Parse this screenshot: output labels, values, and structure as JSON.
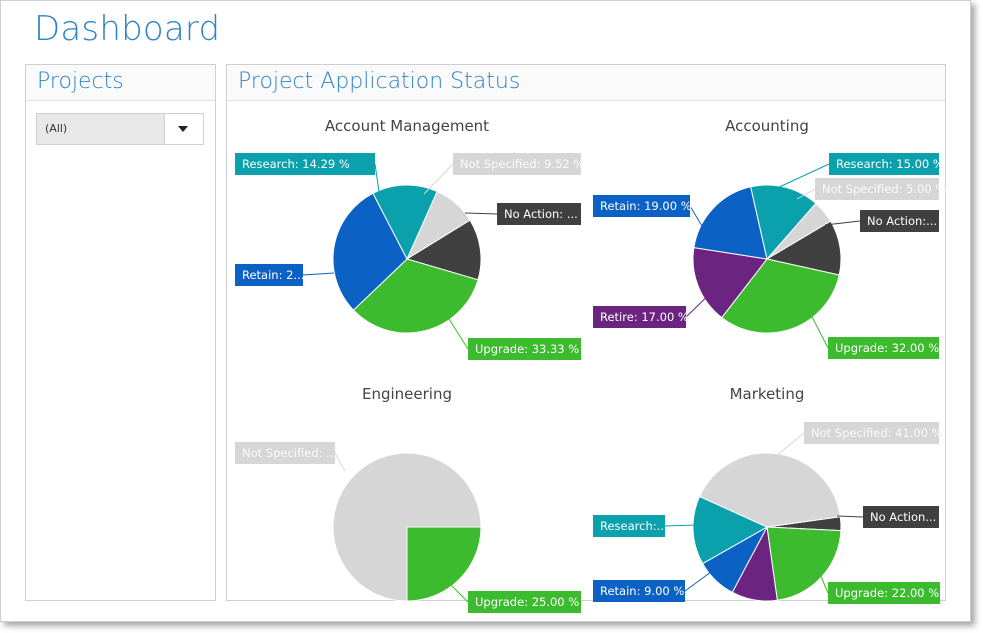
{
  "page": {
    "title": "Dashboard"
  },
  "projects_panel": {
    "title": "Projects",
    "dropdown_value": "(All)"
  },
  "status_panel": {
    "title": "Project Application Status"
  },
  "colors": {
    "research": "#0aa1ad",
    "not_specified": "#d6d6d6",
    "no_action": "#404040",
    "upgrade": "#3dbb2e",
    "retain": "#0b62c4",
    "retire": "#6b2580"
  },
  "chart_data": [
    {
      "type": "pie",
      "title": "Account Management",
      "slices": [
        {
          "name": "Not Specified",
          "value": 9.52,
          "label": "Not Specified: 9.52 %",
          "color": "#d6d6d6"
        },
        {
          "name": "No Action",
          "value": 13.33,
          "label": "No Action: ...",
          "color": "#404040"
        },
        {
          "name": "Upgrade",
          "value": 33.33,
          "label": "Upgrade: 33.33 %",
          "color": "#3dbb2e"
        },
        {
          "name": "Retain",
          "value": 29.53,
          "label": "Retain: 2...",
          "color": "#0b62c4"
        },
        {
          "name": "Research",
          "value": 14.29,
          "label": "Research: 14.29 %",
          "color": "#0aa1ad"
        }
      ]
    },
    {
      "type": "pie",
      "title": "Accounting",
      "slices": [
        {
          "name": "Not Specified",
          "value": 5.0,
          "label": "Not Specified: 5.00 %",
          "color": "#d6d6d6"
        },
        {
          "name": "No Action",
          "value": 12.0,
          "label": "No Action:...",
          "color": "#404040"
        },
        {
          "name": "Upgrade",
          "value": 32.0,
          "label": "Upgrade: 32.00 %",
          "color": "#3dbb2e"
        },
        {
          "name": "Retire",
          "value": 17.0,
          "label": "Retire: 17.00 %",
          "color": "#6b2580"
        },
        {
          "name": "Retain",
          "value": 19.0,
          "label": "Retain: 19.00 %",
          "color": "#0b62c4"
        },
        {
          "name": "Research",
          "value": 15.0,
          "label": "Research: 15.00 %",
          "color": "#0aa1ad"
        }
      ]
    },
    {
      "type": "pie",
      "title": "Engineering",
      "slices": [
        {
          "name": "Upgrade",
          "value": 25.0,
          "label": "Upgrade: 25.00 %",
          "color": "#3dbb2e"
        },
        {
          "name": "Not Specified",
          "value": 75.0,
          "label": "Not Specified: ...",
          "color": "#d6d6d6"
        }
      ]
    },
    {
      "type": "pie",
      "title": "Marketing",
      "slices": [
        {
          "name": "No Action",
          "value": 3.0,
          "label": "No Action...",
          "color": "#404040"
        },
        {
          "name": "Upgrade",
          "value": 22.0,
          "label": "Upgrade: 22.00 %",
          "color": "#3dbb2e"
        },
        {
          "name": "Retire",
          "value": 10.0,
          "label": "",
          "color": "#6b2580"
        },
        {
          "name": "Retain",
          "value": 9.0,
          "label": "Retain: 9.00 %",
          "color": "#0b62c4"
        },
        {
          "name": "Research",
          "value": 15.0,
          "label": "Research:...",
          "color": "#0aa1ad"
        },
        {
          "name": "Not Specified",
          "value": 41.0,
          "label": "Not Specified: 41.00 %",
          "color": "#d6d6d6"
        }
      ]
    }
  ]
}
